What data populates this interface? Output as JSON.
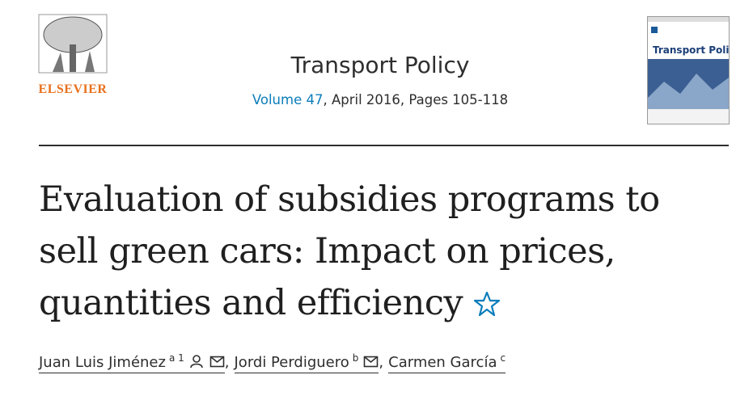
{
  "publisher": "ELSEVIER",
  "journal": {
    "title": "Transport Policy",
    "volume": "Volume 47",
    "issue_info": ", April 2016, Pages 105-118"
  },
  "cover": {
    "title": "Transport Policy"
  },
  "article": {
    "title": "Evaluation of subsidies programs to sell green cars: Impact on prices, quantities and efficiency"
  },
  "authors": [
    {
      "name": "Juan Luis Jiménez",
      "affiliations": "a 1"
    },
    {
      "name": "Jordi Perdiguero",
      "affiliations": "b"
    },
    {
      "name": "Carmen García",
      "affiliations": "c"
    }
  ],
  "author_separator": ","
}
